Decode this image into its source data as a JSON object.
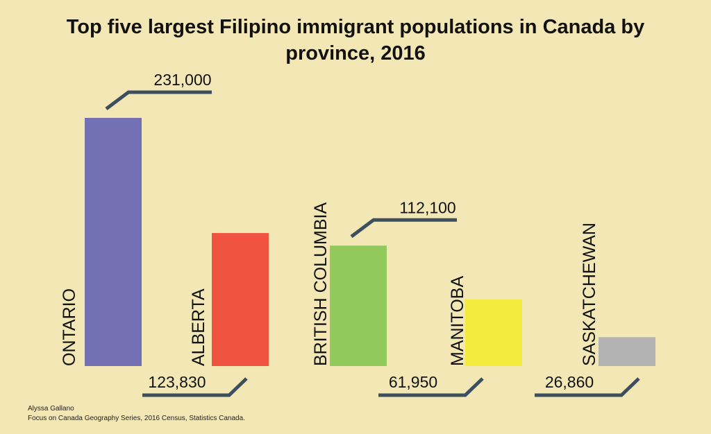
{
  "chart_data": {
    "type": "bar",
    "title": "Top five largest Filipino immigrant populations in Canada by province, 2016",
    "categories": [
      "ONTARIO",
      "ALBERTA",
      "BRITISH COLUMBIA",
      "MANITOBA",
      "SASKATCHEWAN"
    ],
    "values": [
      231000,
      123830,
      112100,
      61950,
      26860
    ],
    "value_labels": [
      "231,000",
      "123,830",
      "112,100",
      "61,950",
      "26,860"
    ],
    "colors": [
      "#7370b3",
      "#f05342",
      "#92c95b",
      "#f3eb3e",
      "#b3b3b3"
    ],
    "credits": [
      "Alyssa Gallano",
      "Focus on Canada Geography Series, 2016 Census, Statistics Canada."
    ]
  }
}
